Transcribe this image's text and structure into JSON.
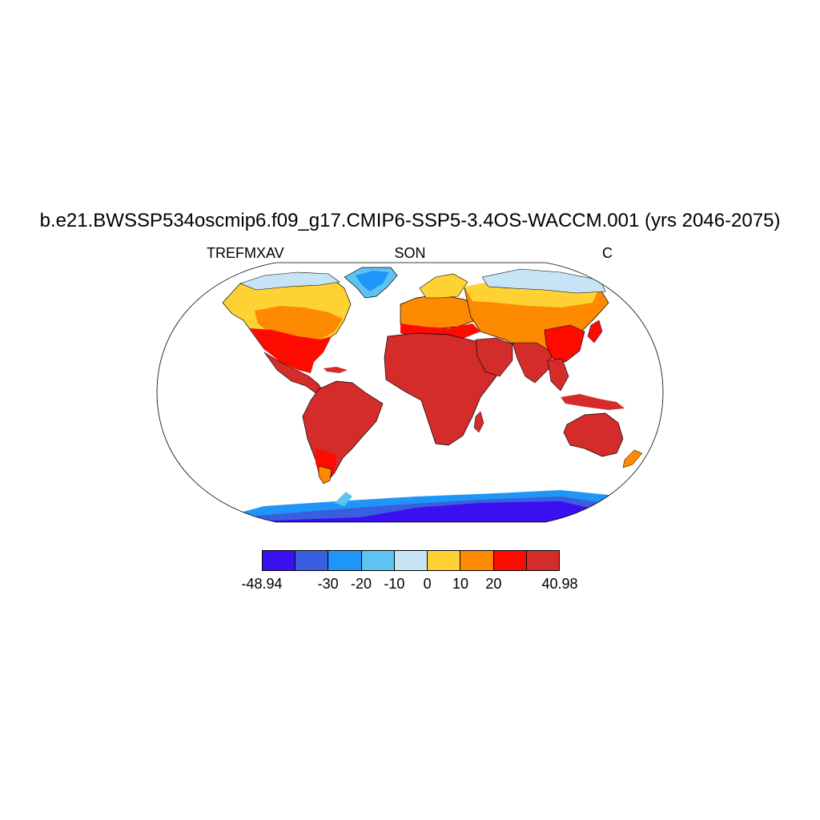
{
  "figure": {
    "title": "b.e21.BWSSP534oscmip6.f09_g17.CMIP6-SSP5-3.4OS-WACCM.001 (yrs 2046-2075)",
    "left_label": "TREFMXAV",
    "center_label": "SON",
    "right_label": "C"
  },
  "colorbar": {
    "colors": [
      "#3a0ff0",
      "#3a5ee0",
      "#1e96f8",
      "#5ec2f2",
      "#c6e4f6",
      "#fdd232",
      "#fd8a00",
      "#fd0a00",
      "#d42b2b"
    ],
    "levels": [
      -48.94,
      -40,
      -30,
      -20,
      -10,
      0,
      10,
      20,
      30,
      40.98
    ],
    "tick_labels": [
      "-48.94",
      "-30",
      "-20",
      "-10",
      "0",
      "10",
      "20",
      "40.98"
    ]
  },
  "map": {
    "projection": "Robinson",
    "variable": "TREFMXAV",
    "season": "SON",
    "units": "C"
  }
}
